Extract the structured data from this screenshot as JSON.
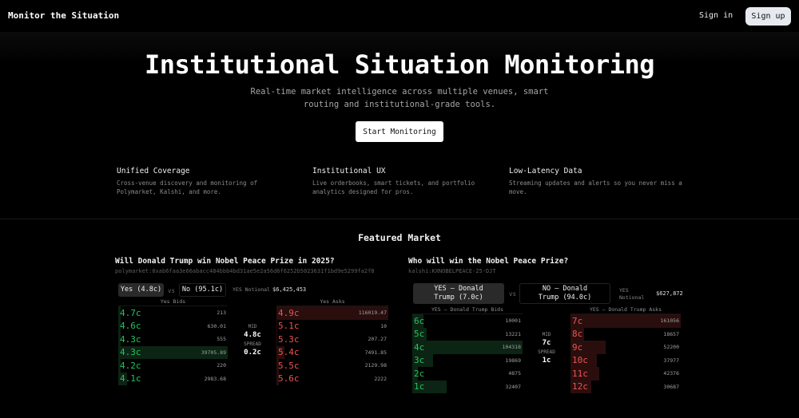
{
  "header": {
    "brand": "Monitor the Situation",
    "signin_label": "Sign in",
    "signup_label": "Sign up"
  },
  "hero": {
    "title": "Institutional Situation Monitoring",
    "subtitle": "Real-time market intelligence across multiple venues, smart routing and institutional-grade tools.",
    "cta_label": "Start Monitoring"
  },
  "features": [
    {
      "title": "Unified Coverage",
      "text": "Cross-venue discovery and monitoring of Polymarket, Kalshi, and more."
    },
    {
      "title": "Institutional UX",
      "text": "Live orderbooks, smart tickets, and portfolio analytics designed for pros."
    },
    {
      "title": "Low-Latency Data",
      "text": "Streaming updates and alerts so you never miss a move."
    }
  ],
  "featured": {
    "title": "Featured Market",
    "markets": [
      {
        "title": "Will Donald Trump win Nobel Peace Prize in 2025?",
        "id": "polymarket:0xab6faa3e66abacc484bbb4bd31ae5e2a56d6f6252b5023631f1bd9e5299fa2f8",
        "outcome_yes": "Yes (4.8c)",
        "vs": "vs",
        "outcome_no": "No (95.1c)",
        "notional_label": "YES Notional",
        "notional_value": "$6,425,453",
        "bids_label": "Yes Bids",
        "asks_label": "Yes Asks",
        "mid_label": "MID",
        "mid_value": "4.8c",
        "spread_label": "SPREAD",
        "spread_value": "0.2c",
        "bids": [
          {
            "price": "4.7c",
            "size": "213",
            "depth": 2
          },
          {
            "price": "4.6c",
            "size": "630.01",
            "depth": 2
          },
          {
            "price": "4.3c",
            "size": "555",
            "depth": 2
          },
          {
            "price": "4.3c",
            "size": "39705.89",
            "depth": 100
          },
          {
            "price": "4.2c",
            "size": "220",
            "depth": 2
          },
          {
            "price": "4.1c",
            "size": "2983.68",
            "depth": 8
          }
        ],
        "asks": [
          {
            "price": "4.9c",
            "size": "116019.47",
            "depth": 100
          },
          {
            "price": "5.1c",
            "size": "10",
            "depth": 1
          },
          {
            "price": "5.3c",
            "size": "207.27",
            "depth": 1
          },
          {
            "price": "5.4c",
            "size": "7491.85",
            "depth": 7
          },
          {
            "price": "5.5c",
            "size": "2129.98",
            "depth": 2
          },
          {
            "price": "5.6c",
            "size": "2222",
            "depth": 2
          }
        ]
      },
      {
        "title": "Who will win the Nobel Peace Prize?",
        "id": "kalshi:KXNOBELPEACE-25-DJT",
        "outcome_yes": "YES — Donald Trump (7.0c)",
        "vs": "vs",
        "outcome_no": "NO — Donald Trump (94.0c)",
        "notional_label": "YES Notional",
        "notional_value": "$627,872",
        "bids_label": "YES — Donald Trump Bids",
        "asks_label": "YES — Donald Trump Asks",
        "mid_label": "MID",
        "mid_value": "7c",
        "spread_label": "SPREAD",
        "spread_value": "1c",
        "bids": [
          {
            "price": "6c",
            "size": "10001",
            "depth": 10
          },
          {
            "price": "5c",
            "size": "13221",
            "depth": 13
          },
          {
            "price": "4c",
            "size": "104318",
            "depth": 100
          },
          {
            "price": "3c",
            "size": "19869",
            "depth": 19
          },
          {
            "price": "2c",
            "size": "4875",
            "depth": 5
          },
          {
            "price": "1c",
            "size": "32407",
            "depth": 31
          }
        ],
        "asks": [
          {
            "price": "7c",
            "size": "161056",
            "depth": 100
          },
          {
            "price": "8c",
            "size": "18657",
            "depth": 12
          },
          {
            "price": "9c",
            "size": "52200",
            "depth": 32
          },
          {
            "price": "10c",
            "size": "37977",
            "depth": 24
          },
          {
            "price": "11c",
            "size": "42376",
            "depth": 26
          },
          {
            "price": "12c",
            "size": "30687",
            "depth": 19
          }
        ]
      }
    ]
  }
}
